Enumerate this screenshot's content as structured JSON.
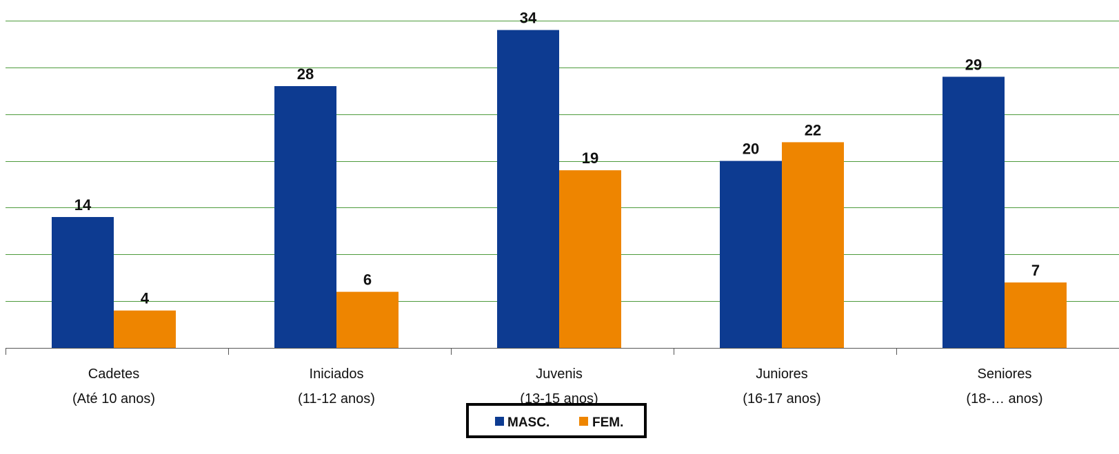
{
  "chart_data": {
    "type": "bar",
    "categories": [
      [
        "Cadetes",
        "(Até 10 anos)"
      ],
      [
        "Iniciados",
        "(11-12 anos)"
      ],
      [
        "Juvenis",
        "(13-15 anos)"
      ],
      [
        "Juniores",
        "(16-17 anos)"
      ],
      [
        "Seniores",
        "(18-… anos)"
      ]
    ],
    "series": [
      {
        "name": "MASC.",
        "color": "#0d3b91",
        "values": [
          14,
          28,
          34,
          20,
          29
        ]
      },
      {
        "name": "FEM.",
        "color": "#ee8500",
        "values": [
          4,
          6,
          19,
          22,
          7
        ]
      }
    ],
    "ylim": [
      0,
      35
    ],
    "grid": true,
    "grid_color": "#4c9a3a",
    "legend_position": "bottom-center",
    "data_labels": true
  }
}
